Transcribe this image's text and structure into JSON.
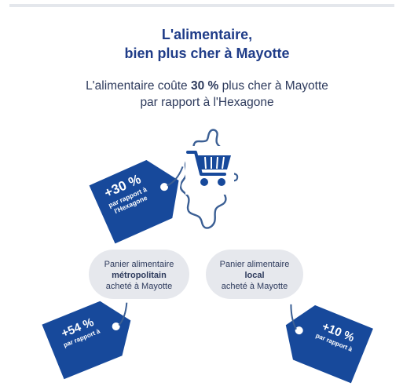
{
  "title": {
    "line1": "L'alimentaire,",
    "line2": "bien plus cher à Mayotte"
  },
  "subtitle": {
    "line1_prefix": "L'alimentaire coûte ",
    "line1_bold": "30 %",
    "line1_suffix": " plus cher à Mayotte",
    "line2": "par rapport à l'Hexagone"
  },
  "main_tag": {
    "value": "+30 %",
    "line1": "par rapport à",
    "line2": "l'Hexagone"
  },
  "bubbles": [
    {
      "line1": "Panier alimentaire",
      "bold": "métropolitain",
      "line3": "acheté à Mayotte"
    },
    {
      "line1": "Panier alimentaire",
      "bold": "local",
      "line3": "acheté à Mayotte"
    }
  ],
  "bottom_tags": [
    {
      "value": "+54 %",
      "sub": "par rapport à"
    },
    {
      "value": "+10 %",
      "sub": "par rapport à"
    }
  ],
  "colors": {
    "brand_blue": "#1f3c88",
    "tag_blue": "#17499b",
    "map_outline": "#3b5f94",
    "bubble_gray": "#e6e8ed"
  },
  "icons": [
    "mayotte-map-icon",
    "shopping-cart-icon",
    "price-tag-icon"
  ]
}
